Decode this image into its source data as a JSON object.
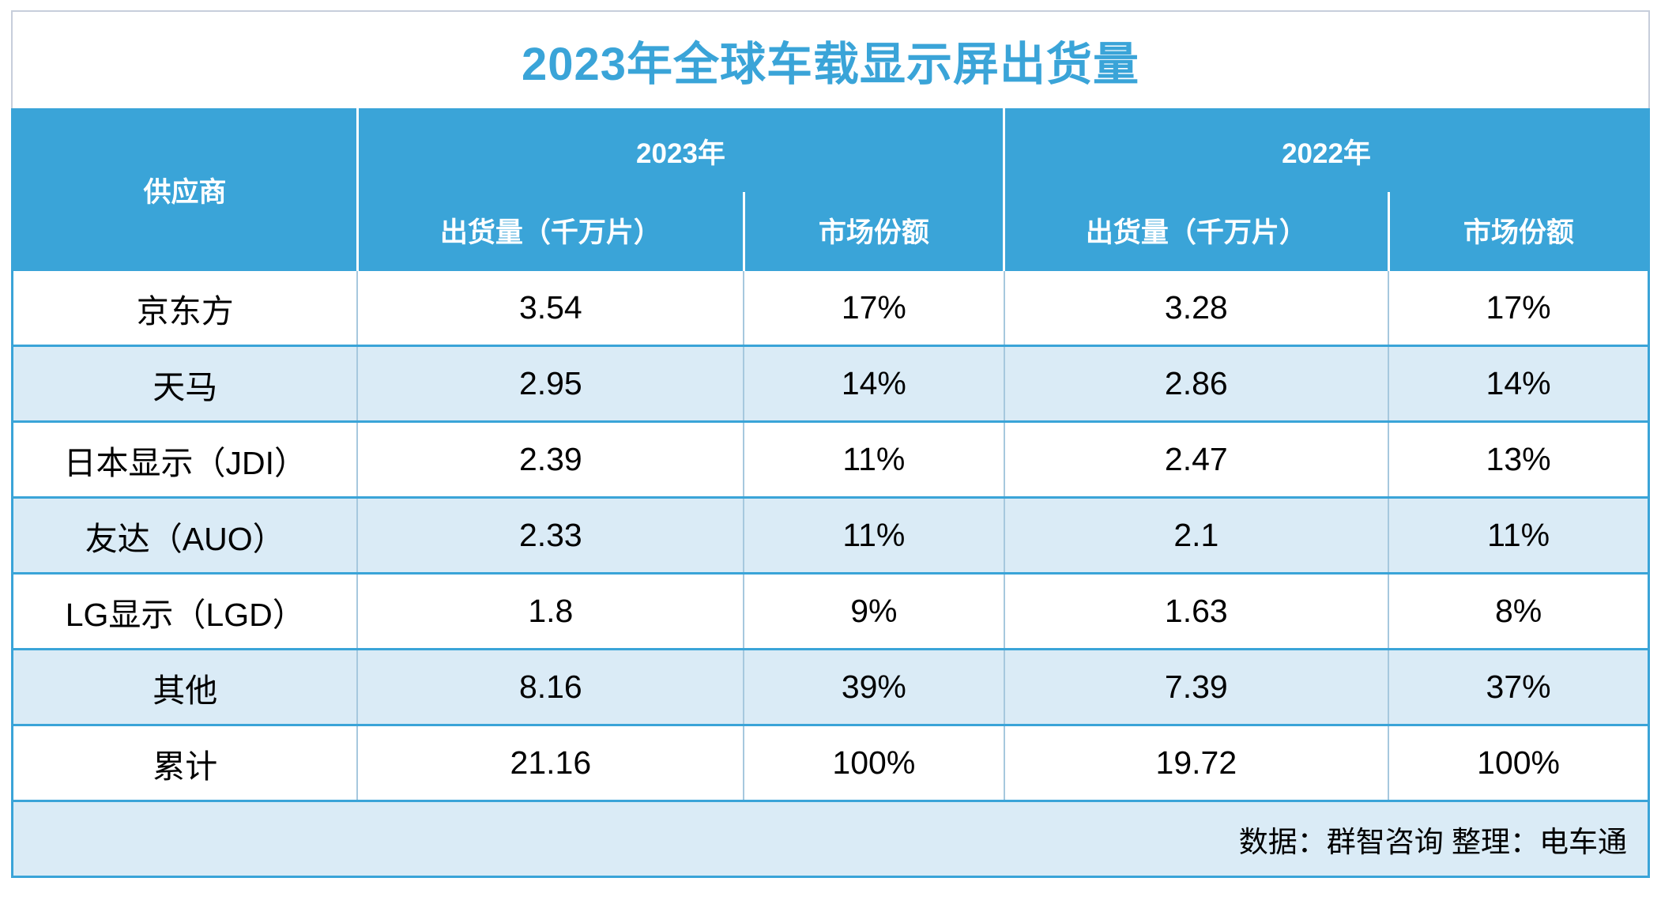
{
  "title": "2023年全球车载显示屏出货量",
  "colors": {
    "accent_blue": "#3aa4d8",
    "row_light_blue": "#daebf6",
    "row_white": "#ffffff",
    "outer_border_gray": "#c7cedb",
    "body_divider": "#a6c8de",
    "header_text": "#ffffff",
    "body_text": "#000000"
  },
  "table": {
    "header": {
      "supplier": "供应商",
      "year_2023": "2023年",
      "year_2022": "2022年",
      "shipments_label_2023": "出货量（千万片）",
      "share_label_2023": "市场份额",
      "shipments_label_2022": "出货量（千万片）",
      "share_label_2022": "市场份额"
    },
    "rows": [
      {
        "supplier": "京东方",
        "shipments_2023": "3.54",
        "share_2023": "17%",
        "shipments_2022": "3.28",
        "share_2022": "17%"
      },
      {
        "supplier": "天马",
        "shipments_2023": "2.95",
        "share_2023": "14%",
        "shipments_2022": "2.86",
        "share_2022": "14%"
      },
      {
        "supplier": "日本显示（JDI）",
        "shipments_2023": "2.39",
        "share_2023": "11%",
        "shipments_2022": "2.47",
        "share_2022": "13%"
      },
      {
        "supplier": "友达（AUO）",
        "shipments_2023": "2.33",
        "share_2023": "11%",
        "shipments_2022": "2.1",
        "share_2022": "11%"
      },
      {
        "supplier": "LG显示（LGD）",
        "shipments_2023": "1.8",
        "share_2023": "9%",
        "shipments_2022": "1.63",
        "share_2022": "8%"
      },
      {
        "supplier": "其他",
        "shipments_2023": "8.16",
        "share_2023": "39%",
        "shipments_2022": "7.39",
        "share_2022": "37%"
      },
      {
        "supplier": "累计",
        "shipments_2023": "21.16",
        "share_2023": "100%",
        "shipments_2022": "19.72",
        "share_2022": "100%"
      }
    ],
    "footer_note": "数据：群智咨询 整理：电车通"
  },
  "chart_data": {
    "type": "table",
    "title": "2023年全球车载显示屏出货量",
    "columns": [
      "供应商",
      "2023年 出货量（千万片）",
      "2023年 市场份额",
      "2022年 出货量（千万片）",
      "2022年 市场份额"
    ],
    "rows": [
      [
        "京东方",
        3.54,
        "17%",
        3.28,
        "17%"
      ],
      [
        "天马",
        2.95,
        "14%",
        2.86,
        "14%"
      ],
      [
        "日本显示（JDI）",
        2.39,
        "11%",
        2.47,
        "13%"
      ],
      [
        "友达（AUO）",
        2.33,
        "11%",
        2.1,
        "11%"
      ],
      [
        "LG显示（LGD）",
        1.8,
        "9%",
        1.63,
        "8%"
      ],
      [
        "其他",
        8.16,
        "39%",
        7.39,
        "37%"
      ],
      [
        "累计",
        21.16,
        "100%",
        19.72,
        "100%"
      ]
    ],
    "source_note": "数据：群智咨询 整理：电车通",
    "layout": {
      "header_fill": "#3aa4d8",
      "zebra_fills": [
        "#ffffff",
        "#daebf6"
      ],
      "grid": "on"
    }
  }
}
